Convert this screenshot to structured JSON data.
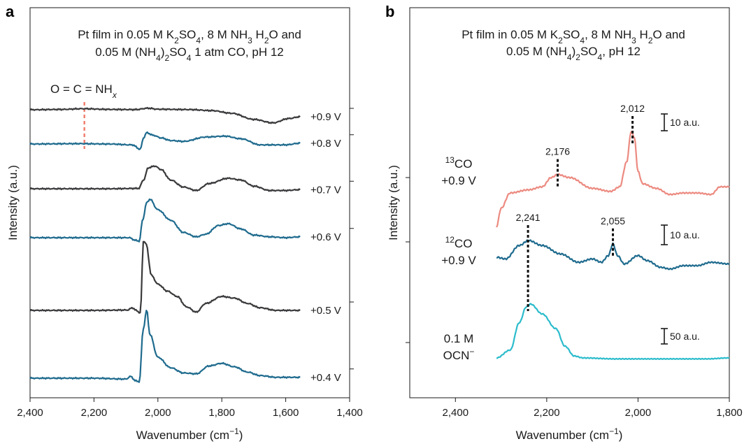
{
  "figure": {
    "panel_a_letter": "a",
    "panel_b_letter": "b"
  },
  "colors": {
    "dark": "#3a3a3c",
    "blue": "#1f6b8e",
    "salmon": "#ec8a80",
    "teal": "#2cbccc",
    "marker": "#f08070"
  },
  "chart_data": [
    {
      "type": "line",
      "panel": "a",
      "title_line1": [
        "Pt film in 0.05 M K",
        "2",
        "SO",
        "4",
        ", 8 M NH",
        "3",
        " H",
        "2",
        "O and"
      ],
      "title_line2": [
        "0.05 M (NH",
        "4",
        ")",
        "2",
        "SO",
        "4",
        " 1 atm CO, pH 12"
      ],
      "xlabel": "Wavenumber (cm",
      "xlabel_sup": "−1",
      "xlabel_end": ")",
      "ylabel": "Intensity (a.u.)",
      "xlim": [
        2400,
        1400
      ],
      "x_ticks": [
        2400,
        2200,
        2000,
        1800,
        1600,
        1400
      ],
      "x_tick_labels": [
        "2,400",
        "2,200",
        "2,000",
        "1,800",
        "1,600",
        "1,400"
      ],
      "annotation": "O = C = NH",
      "annotation_sub": "x",
      "annotation_x": 2230,
      "series": [
        {
          "name": "+0.9 V",
          "color": "dark",
          "points": [
            [
              2400,
              0
            ],
            [
              2300,
              0.2
            ],
            [
              2235,
              0.6
            ],
            [
              2150,
              0.2
            ],
            [
              2070,
              0.1
            ],
            [
              2030,
              0.9
            ],
            [
              2000,
              0.3
            ],
            [
              1900,
              0.1
            ],
            [
              1830,
              -0.5
            ],
            [
              1770,
              -2.0
            ],
            [
              1700,
              -5.5
            ],
            [
              1640,
              -7.5
            ],
            [
              1590,
              -5.0
            ],
            [
              1555,
              -4.0
            ]
          ]
        },
        {
          "name": "+0.8 V",
          "color": "blue",
          "points": [
            [
              2400,
              0
            ],
            [
              2250,
              0.2
            ],
            [
              2150,
              0
            ],
            [
              2080,
              -0.5
            ],
            [
              2055,
              -3.0
            ],
            [
              2045,
              3.5
            ],
            [
              2035,
              6.5
            ],
            [
              2015,
              5.0
            ],
            [
              1990,
              3.5
            ],
            [
              1960,
              2.0
            ],
            [
              1920,
              1.5
            ],
            [
              1850,
              4.0
            ],
            [
              1790,
              4.5
            ],
            [
              1740,
              3.0
            ],
            [
              1680,
              -0.5
            ],
            [
              1600,
              -0.5
            ],
            [
              1555,
              0.5
            ]
          ]
        },
        {
          "name": "+0.7 V",
          "color": "dark",
          "points": [
            [
              2400,
              0
            ],
            [
              2150,
              0
            ],
            [
              2060,
              0.2
            ],
            [
              2045,
              5.0
            ],
            [
              2030,
              12.0
            ],
            [
              2010,
              13.0
            ],
            [
              1990,
              11.0
            ],
            [
              1960,
              5.0
            ],
            [
              1920,
              1.0
            ],
            [
              1880,
              -1.0
            ],
            [
              1840,
              3.0
            ],
            [
              1780,
              6.0
            ],
            [
              1740,
              5.0
            ],
            [
              1700,
              1.5
            ],
            [
              1650,
              -1.0
            ],
            [
              1600,
              -1.0
            ],
            [
              1555,
              -0.5
            ]
          ]
        },
        {
          "name": "+0.6 V",
          "color": "blue",
          "points": [
            [
              2400,
              0
            ],
            [
              2200,
              0
            ],
            [
              2090,
              0
            ],
            [
              2070,
              -1.5
            ],
            [
              2058,
              -2.0
            ],
            [
              2048,
              10.0
            ],
            [
              2035,
              20.0
            ],
            [
              2025,
              22.0
            ],
            [
              2000,
              16.0
            ],
            [
              1960,
              10.0
            ],
            [
              1920,
              3.0
            ],
            [
              1880,
              0.5
            ],
            [
              1850,
              2.0
            ],
            [
              1810,
              7.0
            ],
            [
              1780,
              8.0
            ],
            [
              1740,
              5.0
            ],
            [
              1700,
              1.5
            ],
            [
              1650,
              0.5
            ],
            [
              1600,
              0
            ],
            [
              1555,
              0.5
            ]
          ]
        },
        {
          "name": "+0.5 V",
          "color": "dark",
          "points": [
            [
              2400,
              0
            ],
            [
              2200,
              0
            ],
            [
              2095,
              0.2
            ],
            [
              2080,
              1.5
            ],
            [
              2068,
              0
            ],
            [
              2055,
              -1.5
            ],
            [
              2045,
              40.0
            ],
            [
              2037,
              38.0
            ],
            [
              2020,
              20.0
            ],
            [
              2000,
              15.0
            ],
            [
              1970,
              11.0
            ],
            [
              1940,
              8.0
            ],
            [
              1910,
              2.0
            ],
            [
              1880,
              -1.0
            ],
            [
              1850,
              4.0
            ],
            [
              1800,
              8.0
            ],
            [
              1760,
              7.0
            ],
            [
              1720,
              4.0
            ],
            [
              1680,
              1.5
            ],
            [
              1630,
              0
            ],
            [
              1555,
              0
            ]
          ]
        },
        {
          "name": "+0.4 V",
          "color": "blue",
          "points": [
            [
              2400,
              0
            ],
            [
              2200,
              0
            ],
            [
              2100,
              -0.5
            ],
            [
              2085,
              1.0
            ],
            [
              2070,
              -1.5
            ],
            [
              2058,
              -2.0
            ],
            [
              2046,
              28.0
            ],
            [
              2035,
              39.0
            ],
            [
              2025,
              25.0
            ],
            [
              2000,
              12.0
            ],
            [
              1960,
              6.0
            ],
            [
              1920,
              3.0
            ],
            [
              1880,
              2.5
            ],
            [
              1840,
              7.0
            ],
            [
              1800,
              8.5
            ],
            [
              1760,
              6.5
            ],
            [
              1720,
              3.5
            ],
            [
              1680,
              1.5
            ],
            [
              1630,
              0.5
            ],
            [
              1555,
              0.5
            ]
          ]
        }
      ]
    },
    {
      "type": "line",
      "panel": "b",
      "title_line1": [
        "Pt film in 0.05 M K",
        "2",
        "SO",
        "4",
        ", 8 M NH",
        "3",
        " H",
        "2",
        "O and"
      ],
      "title_line2": [
        "0.05 M (NH",
        "4",
        ")",
        "2",
        "SO",
        "4",
        ", pH 12"
      ],
      "xlabel": "Wavenumber (cm",
      "xlabel_sup": "−1",
      "xlabel_end": ")",
      "ylabel": "Intensity (a.u.)",
      "xlim": [
        2500,
        1800
      ],
      "x_ticks": [
        2400,
        2200,
        2000,
        1800
      ],
      "x_tick_labels": [
        "2,400",
        "2,200",
        "2,000",
        "1,800"
      ],
      "series": [
        {
          "name_sup": "13",
          "name": "CO",
          "name_line2": "+0.9 V",
          "color": "salmon",
          "peaks": [
            {
              "x": 2176,
              "label": "2,176"
            },
            {
              "x": 2012,
              "label": "2,012"
            }
          ],
          "scale_label": "10 a.u.",
          "points": [
            [
              2310,
              -22
            ],
            [
              2300,
              -10
            ],
            [
              2280,
              0
            ],
            [
              2240,
              2
            ],
            [
              2210,
              4
            ],
            [
              2190,
              10
            ],
            [
              2176,
              12
            ],
            [
              2150,
              10
            ],
            [
              2100,
              3
            ],
            [
              2060,
              1
            ],
            [
              2040,
              4
            ],
            [
              2025,
              20
            ],
            [
              2015,
              40
            ],
            [
              2008,
              36
            ],
            [
              2000,
              14
            ],
            [
              1990,
              6
            ],
            [
              1960,
              3
            ],
            [
              1930,
              -1
            ],
            [
              1900,
              0
            ],
            [
              1870,
              0
            ],
            [
              1840,
              -1
            ],
            [
              1820,
              4
            ],
            [
              1800,
              4
            ]
          ]
        },
        {
          "name_sup": "12",
          "name": "CO",
          "name_line2": "+0.9 V",
          "color": "blue",
          "peaks": [
            {
              "x": 2241,
              "label": "2,241"
            },
            {
              "x": 2055,
              "label": "2,055"
            }
          ],
          "scale_label": "10 a.u.",
          "points": [
            [
              2310,
              0
            ],
            [
              2290,
              -1
            ],
            [
              2260,
              7
            ],
            [
              2240,
              10
            ],
            [
              2210,
              7
            ],
            [
              2170,
              2
            ],
            [
              2130,
              -3
            ],
            [
              2100,
              -1
            ],
            [
              2080,
              -3
            ],
            [
              2065,
              1
            ],
            [
              2055,
              8
            ],
            [
              2045,
              1
            ],
            [
              2030,
              -4
            ],
            [
              2000,
              1
            ],
            [
              1980,
              -2
            ],
            [
              1950,
              -6
            ],
            [
              1930,
              -7
            ],
            [
              1900,
              -5
            ],
            [
              1870,
              -5
            ],
            [
              1840,
              -3
            ],
            [
              1800,
              -4
            ]
          ]
        },
        {
          "name": "0.1 M",
          "name_line2": "OCN",
          "name_line2_sup": "−",
          "color": "teal",
          "scale_label": "50 a.u.",
          "points": [
            [
              2310,
              0
            ],
            [
              2280,
              8
            ],
            [
              2260,
              36
            ],
            [
              2245,
              52
            ],
            [
              2235,
              55
            ],
            [
              2210,
              45
            ],
            [
              2180,
              30
            ],
            [
              2160,
              12
            ],
            [
              2140,
              2
            ],
            [
              2120,
              0
            ],
            [
              2050,
              -1
            ],
            [
              1950,
              -1
            ],
            [
              1850,
              -1
            ],
            [
              1800,
              0
            ]
          ]
        }
      ]
    }
  ]
}
